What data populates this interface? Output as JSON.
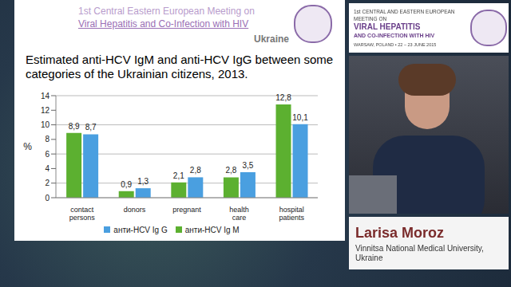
{
  "slide": {
    "header": [
      "1st Central Eastern European Meeting on",
      "Viral Hepatitis and Co-Infection with HIV"
    ],
    "country": "Ukraine"
  },
  "logo": {
    "lines": [
      "1st CENTRAL AND EASTERN EUROPEAN MEETING ON",
      "VIRAL HEPATITIS",
      "AND CO-INFECTION WITH HIV"
    ],
    "footer": "WARSAW, POLAND • 22 – 23 JUNE 2015"
  },
  "speaker": {
    "name": "Larisa Moroz",
    "affiliation": "Vinnitsa National Medical University, Ukraine"
  },
  "chart_data": {
    "type": "bar",
    "title": "Estimated anti-HCV IgM and anti-HCV IgG  between some categories of the Ukrainian citizens, 2013.",
    "y_label": "%",
    "categories": [
      "contact persons",
      "donors",
      "pregnant",
      "health care",
      "hospital patients"
    ],
    "series": [
      {
        "name": "анти-HCV Ig M",
        "color": "#5cb030",
        "values": [
          8.9,
          0.9,
          2.1,
          2.8,
          12.8
        ],
        "value_labels": [
          "8,9",
          "0,9",
          "2,1",
          "2,8",
          "12,8"
        ]
      },
      {
        "name": "анти-HCV Ig G",
        "color": "#4a9fe0",
        "values": [
          8.7,
          1.3,
          2.8,
          3.5,
          10.1
        ],
        "value_labels": [
          "8,7",
          "1,3",
          "2,8",
          "3,5",
          "10,1"
        ]
      }
    ],
    "ylim": [
      0,
      14
    ],
    "yticks": [
      0,
      2,
      4,
      6,
      8,
      10,
      12,
      14
    ],
    "grid": true,
    "legend": "bottom",
    "data_labels": true
  }
}
